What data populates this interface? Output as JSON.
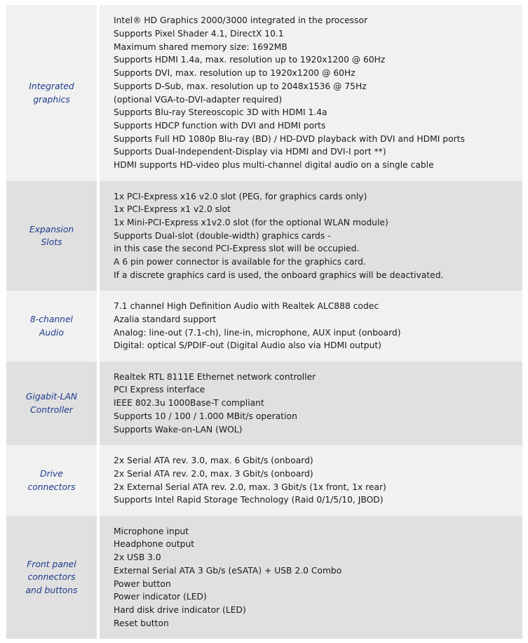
{
  "rows": [
    {
      "label": "Integrated\ngraphics",
      "lines": [
        "Intel® HD Graphics 2000/3000 integrated in the processor",
        "Supports Pixel Shader 4.1, DirectX 10.1",
        "Maximum shared memory size: 1692MB",
        "Supports HDMI 1.4a, max. resolution up to 1920x1200 @ 60Hz",
        "Supports DVI, max. resolution up to 1920x1200 @ 60Hz",
        "Supports D-Sub, max. resolution up to 2048x1536 @ 75Hz",
        "(optional VGA-to-DVI-adapter required)",
        "Supports Blu-ray Stereoscopic 3D with HDMI 1.4a",
        "Supports HDCP function with DVI and HDMI ports",
        "Supports Full HD 1080p Blu-ray (BD) / HD-DVD playback with DVI and HDMI ports",
        "Supports Dual-Independent-Display via HDMI and DVI-I port **)",
        "HDMI supports HD-video plus multi-channel digital audio on a single cable"
      ]
    },
    {
      "label": "Expansion\nSlots",
      "lines": [
        "1x PCI-Express x16 v2.0 slot (PEG, for graphics cards only)",
        "1x PCI-Express x1 v2.0 slot",
        "1x Mini-PCI-Express x1v2.0 slot (for the optional WLAN module)",
        "Supports Dual-slot (double-width) graphics cards -",
        "in this case the second PCI-Express slot will be occupied.",
        "A 6 pin power connector is available for the graphics card.",
        "If a discrete graphics card is used, the onboard graphics will be deactivated."
      ]
    },
    {
      "label": "8-channel\nAudio",
      "lines": [
        "7.1 channel High Definition Audio with Realtek ALC888 codec",
        "Azalia standard support",
        "Analog: line-out (7.1-ch), line-in, microphone, AUX input (onboard)",
        "Digital: optical S/PDIF-out (Digital Audio also via HDMI output)"
      ]
    },
    {
      "label": "Gigabit-LAN\nController",
      "lines": [
        "Realtek RTL 8111E Ethernet network controller",
        "PCI Express interface",
        "IEEE 802.3u 1000Base-T compliant",
        "Supports 10 / 100 / 1.000 MBit/s operation",
        "Supports Wake-on-LAN (WOL)"
      ]
    },
    {
      "label": "Drive\nconnectors",
      "lines": [
        "2x Serial ATA rev. 3.0, max. 6 Gbit/s (onboard)",
        "2x Serial ATA rev. 2.0, max. 3 Gbit/s (onboard)",
        "2x External Serial ATA rev. 2.0, max. 3 Gbit/s (1x front, 1x rear)",
        "Supports Intel Rapid Storage Technology (Raid 0/1/5/10, JBOD)"
      ]
    },
    {
      "label": "Front panel\nconnectors\nand buttons",
      "lines": [
        "Microphone input",
        "Headphone output",
        "2x USB 3.0",
        "External Serial ATA 3 Gb/s (eSATA) + USB 2.0 Combo",
        "Power button",
        "Power indicator (LED)",
        "Hard disk drive indicator (LED)",
        "Reset button"
      ]
    }
  ]
}
